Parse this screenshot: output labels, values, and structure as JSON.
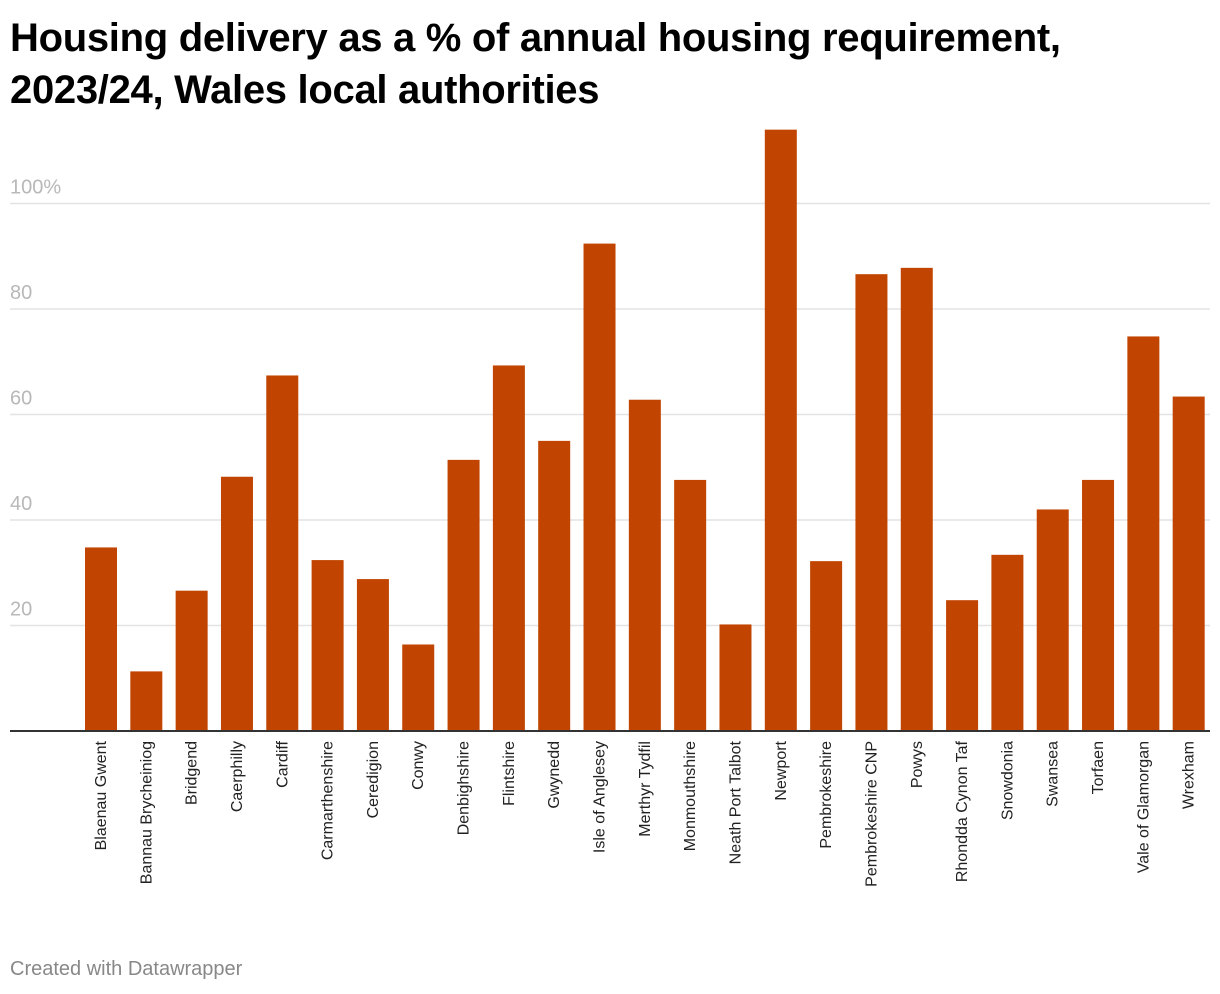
{
  "colors": {
    "bar": "#c14400",
    "gridline": "#e3e3e3",
    "axis": "#333333",
    "tick_text": "#b8b8b8"
  },
  "footer": {
    "credit": "Created with Datawrapper"
  },
  "chart_data": {
    "type": "bar",
    "title": "Housing delivery as a % of annual housing requirement, 2023/24, Wales local authorities",
    "xlabel": "",
    "ylabel": "",
    "ylim": [
      0,
      115
    ],
    "yticks": [
      20,
      40,
      60,
      80,
      100
    ],
    "ytick_labels": [
      "20",
      "40",
      "60",
      "80",
      "100%"
    ],
    "grid": true,
    "categories": [
      "Blaenau Gwent",
      "Bannau Brycheiniog",
      "Bridgend",
      "Caerphilly",
      "Cardiff",
      "Carmarthenshire",
      "Ceredigion",
      "Conwy",
      "Denbighshire",
      "Flintshire",
      "Gwynedd",
      "Isle of Anglesey",
      "Merthyr Tydfil",
      "Monmouthshire",
      "Neath Port Talbot",
      "Newport",
      "Pembrokeshire",
      "Pembrokeshire CNP",
      "Powys",
      "Rhondda Cynon Taf",
      "Snowdonia",
      "Swansea",
      "Torfaen",
      "Vale of Glamorgan",
      "Wrexham"
    ],
    "values": [
      34.8,
      11.3,
      26.6,
      48.2,
      67.4,
      32.4,
      28.8,
      16.4,
      51.4,
      69.3,
      55,
      92.4,
      62.8,
      47.6,
      20.2,
      114,
      32.2,
      86.6,
      87.8,
      24.8,
      33.4,
      42,
      47.6,
      74.8,
      63.4
    ]
  }
}
